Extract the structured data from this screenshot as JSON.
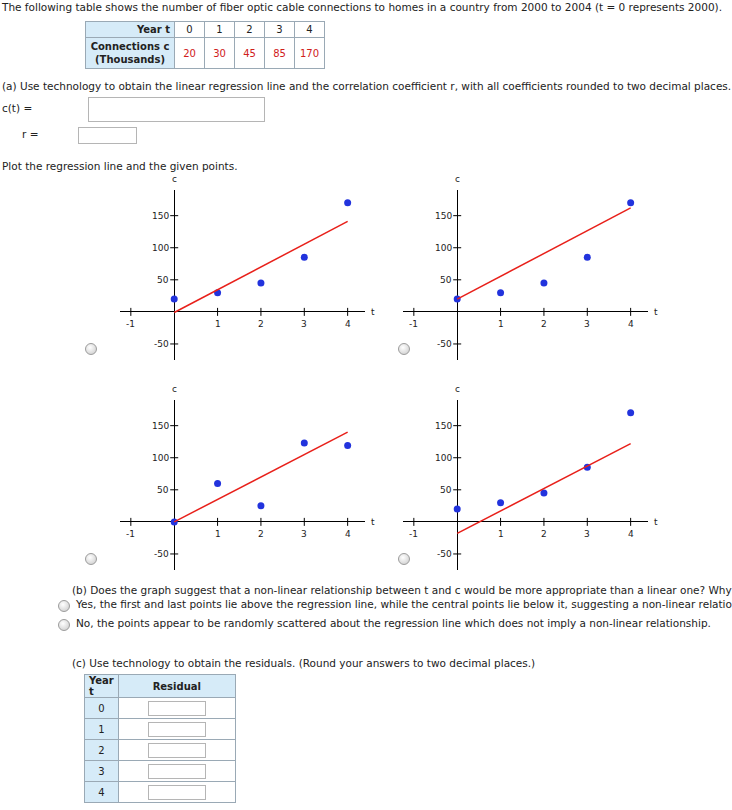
{
  "intro": "The following table shows the number of fiber optic cable connections to homes in a country from 2000 to 2004 (t = 0 represents 2000).",
  "data_table": {
    "header": "Year t",
    "row_label": [
      "Connections c",
      "(Thousands)"
    ],
    "years": [
      0,
      1,
      2,
      3,
      4
    ],
    "connections": [
      20,
      30,
      45,
      85,
      170
    ]
  },
  "part_a": {
    "prompt": "(a) Use technology to obtain the linear regression line and the correlation coefficient r, with all coefficients rounded to two decimal places.",
    "fields": [
      "c(t) =",
      "r ="
    ]
  },
  "plot_prompt": "Plot the regression line and the given points.",
  "chart_data": [
    {
      "type": "scatter",
      "x_label": "t",
      "y_label": "c",
      "xlim": [
        -1.25,
        4.4
      ],
      "ylim": [
        -75,
        190
      ],
      "xticks": [
        -1,
        1,
        2,
        3,
        4
      ],
      "yticks": [
        -50,
        50,
        100,
        150
      ],
      "grid": false,
      "series": [
        {
          "type": "scatter",
          "color": "#2233dd",
          "marker": "circle",
          "x": [
            0,
            1,
            2,
            3,
            4
          ],
          "values": [
            20,
            30,
            45,
            85,
            170
          ]
        },
        {
          "type": "line",
          "color": "#e8201a",
          "line_style": "solid",
          "x": [
            0,
            4
          ],
          "values": [
            -1,
            141
          ]
        }
      ]
    },
    {
      "type": "scatter",
      "x_label": "t",
      "y_label": "c",
      "xlim": [
        -1.25,
        4.4
      ],
      "ylim": [
        -75,
        190
      ],
      "xticks": [
        -1,
        1,
        2,
        3,
        4
      ],
      "yticks": [
        -50,
        50,
        100,
        150
      ],
      "grid": false,
      "series": [
        {
          "type": "scatter",
          "color": "#2233dd",
          "marker": "circle",
          "x": [
            0,
            1,
            2,
            3,
            4
          ],
          "values": [
            20,
            30,
            45,
            85,
            170
          ]
        },
        {
          "type": "line",
          "color": "#e8201a",
          "line_style": "solid",
          "x": [
            0,
            4
          ],
          "values": [
            20,
            162
          ]
        }
      ]
    },
    {
      "type": "scatter",
      "x_label": "t",
      "y_label": "c",
      "xlim": [
        -1.25,
        4.4
      ],
      "ylim": [
        -75,
        190
      ],
      "xticks": [
        -1,
        1,
        2,
        3,
        4
      ],
      "yticks": [
        -50,
        50,
        100,
        150
      ],
      "grid": false,
      "series": [
        {
          "type": "scatter",
          "color": "#2233dd",
          "marker": "circle",
          "x": [
            0,
            1,
            2,
            3,
            4
          ],
          "values": [
            0,
            60,
            25,
            123,
            119
          ]
        },
        {
          "type": "line",
          "color": "#e8201a",
          "line_style": "solid",
          "x": [
            0,
            4
          ],
          "values": [
            0,
            140
          ]
        }
      ]
    },
    {
      "type": "scatter",
      "x_label": "t",
      "y_label": "c",
      "xlim": [
        -1.25,
        4.4
      ],
      "ylim": [
        -75,
        190
      ],
      "xticks": [
        -1,
        1,
        2,
        3,
        4
      ],
      "yticks": [
        -50,
        50,
        100,
        150
      ],
      "grid": false,
      "series": [
        {
          "type": "scatter",
          "color": "#2233dd",
          "marker": "circle",
          "x": [
            0,
            1,
            2,
            3,
            4
          ],
          "values": [
            20,
            30,
            45,
            85,
            170
          ]
        },
        {
          "type": "line",
          "color": "#e8201a",
          "line_style": "solid",
          "x": [
            0,
            4
          ],
          "values": [
            -18,
            122
          ]
        }
      ]
    }
  ],
  "part_b": {
    "question": "(b) Does the graph suggest that a non-linear relationship between t and c would be more appropriate than a linear one? Why?",
    "options": [
      "Yes, the first and last points lie above the regression line, while the central points lie below it, suggesting a non-linear relationship.",
      "No, the points appear to be randomly scattered about the regression line which does not imply a non-linear relationship."
    ]
  },
  "part_c": {
    "prompt": "(c) Use technology to obtain the residuals. (Round your answers to two decimal places.)",
    "table": {
      "header": [
        "Year t",
        "Residual"
      ],
      "rows": [
        0,
        1,
        2,
        3,
        4
      ]
    }
  }
}
